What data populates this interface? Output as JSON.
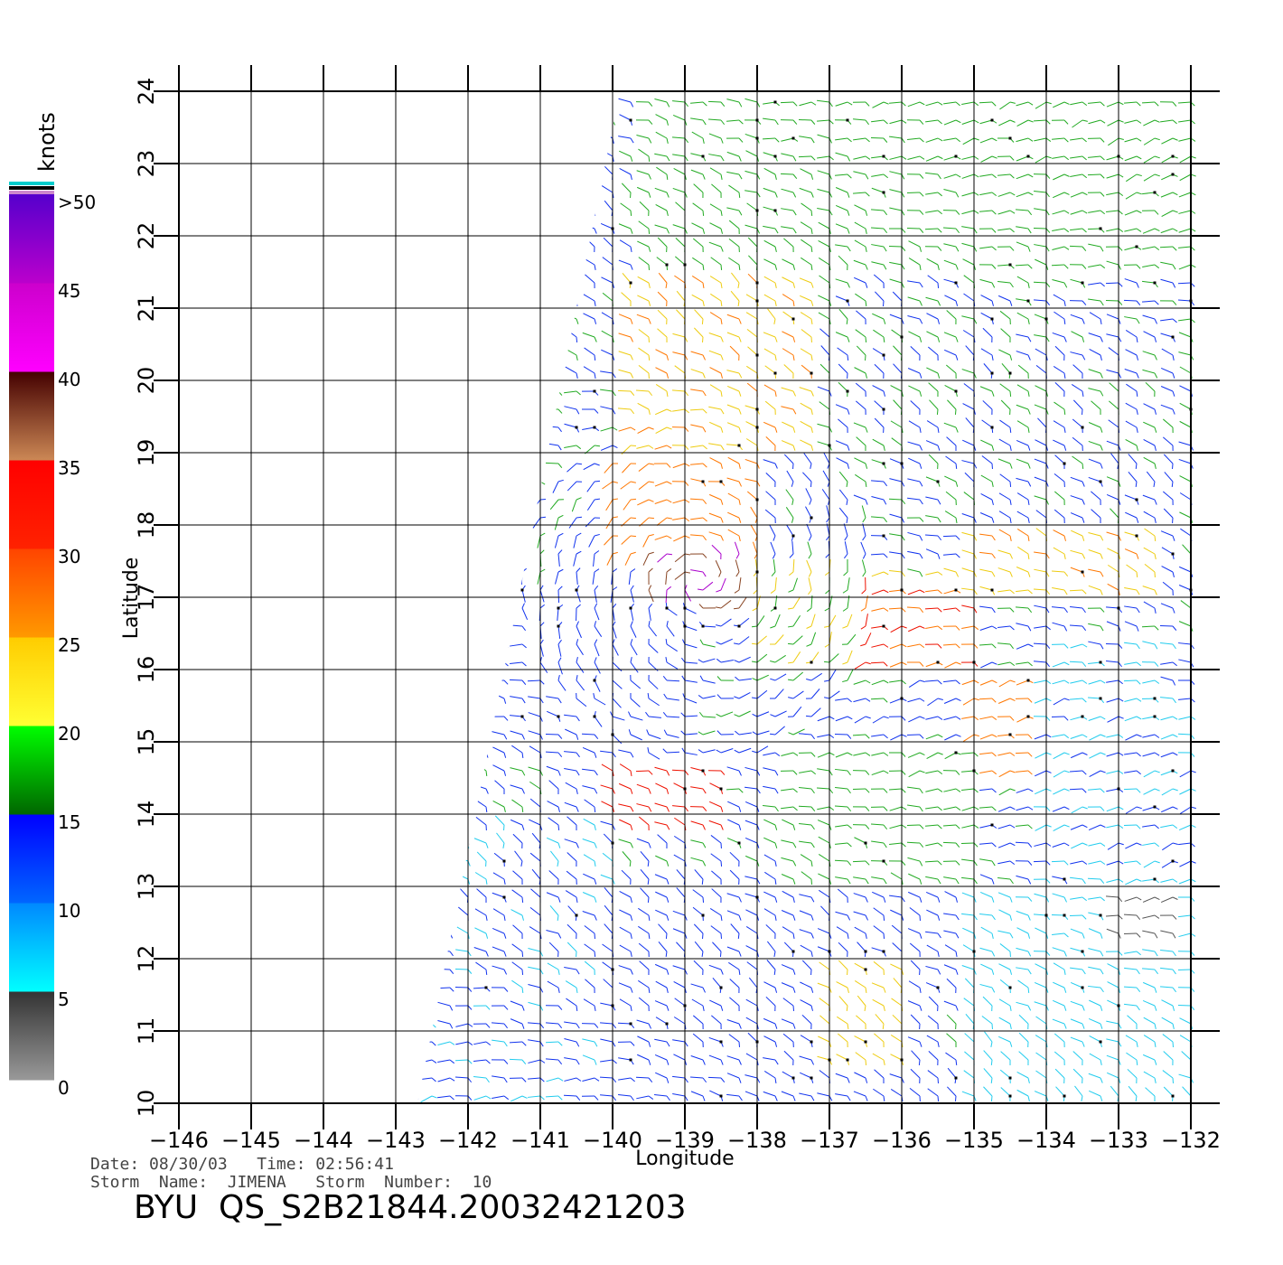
{
  "chart_data": {
    "type": "vector-field",
    "xlabel": "Longitude",
    "ylabel": "Latitude",
    "xlim": [
      -146,
      -132
    ],
    "ylim": [
      10,
      24
    ],
    "x_ticks": [
      "−146",
      "−145",
      "−144",
      "−143",
      "−142",
      "−141",
      "−140",
      "−139",
      "−138",
      "−137",
      "−136",
      "−135",
      "−134",
      "−133",
      "−132"
    ],
    "x_tick_values": [
      -146,
      -145,
      -144,
      -143,
      -142,
      -141,
      -140,
      -139,
      -138,
      -137,
      -136,
      -135,
      -134,
      -133,
      -132
    ],
    "y_ticks": [
      "10",
      "11",
      "12",
      "13",
      "14",
      "15",
      "16",
      "17",
      "18",
      "19",
      "20",
      "21",
      "22",
      "23",
      "24"
    ],
    "y_tick_values": [
      10,
      11,
      12,
      13,
      14,
      15,
      16,
      17,
      18,
      19,
      20,
      21,
      22,
      23,
      24
    ],
    "grid": true,
    "swath": {
      "description_free": true,
      "corners_lonlat": [
        [
          -139.9,
          24
        ],
        [
          -131.9,
          24
        ],
        [
          -131.9,
          10
        ],
        [
          -142.7,
          10
        ]
      ]
    },
    "colorbar": {
      "unit": "knots",
      "labels": [
        ">50",
        "45",
        "40",
        "35",
        "30",
        "25",
        "20",
        "15",
        "10",
        "5",
        "0"
      ],
      "label_values": [
        50,
        45,
        40,
        35,
        30,
        25,
        20,
        15,
        10,
        5,
        0
      ],
      "bands": [
        {
          "from": 0,
          "to": 5,
          "top": "#333333",
          "bottom": "#999999"
        },
        {
          "from": 5,
          "to": 10,
          "top": "#0088ff",
          "bottom": "#00ffff"
        },
        {
          "from": 10,
          "to": 15,
          "top": "#0000ff",
          "bottom": "#0066ff"
        },
        {
          "from": 15,
          "to": 20,
          "top": "#00ff00",
          "bottom": "#006600"
        },
        {
          "from": 20,
          "to": 25,
          "top": "#ffcc00",
          "bottom": "#ffff33"
        },
        {
          "from": 25,
          "to": 30,
          "top": "#ff4400",
          "bottom": "#ff9900"
        },
        {
          "from": 30,
          "to": 35,
          "top": "#ff0000",
          "bottom": "#ff2200"
        },
        {
          "from": 35,
          "to": 40,
          "top": "#440000",
          "bottom": "#cc8855"
        },
        {
          "from": 40,
          "to": 45,
          "top": "#cc00cc",
          "bottom": "#ff00ff"
        },
        {
          "from": 45,
          "to": 50,
          "top": "#5500cc",
          "bottom": "#bb00cc"
        }
      ],
      "top_stripes": [
        "#00cccc",
        "#000000",
        "#cc88cc"
      ]
    },
    "wind_regions": [
      {
        "lon": [
          -139.5,
          -132
        ],
        "lat": [
          21.5,
          24
        ],
        "speed": 18
      },
      {
        "lon": [
          -139.8,
          -137
        ],
        "lat": [
          19,
          21.5
        ],
        "speed": 24
      },
      {
        "lon": [
          -137,
          -132
        ],
        "lat": [
          19,
          21.5
        ],
        "speed": 15
      },
      {
        "lon": [
          -140,
          -138
        ],
        "lat": [
          17.5,
          19
        ],
        "speed": 28
      },
      {
        "lon": [
          -139.7,
          -138.2
        ],
        "lat": [
          16.7,
          17.8
        ],
        "speed": 40
      },
      {
        "lon": [
          -138,
          -135
        ],
        "lat": [
          16,
          17.5
        ],
        "speed": 20
      },
      {
        "lon": [
          -136.5,
          -135
        ],
        "lat": [
          16,
          17.2
        ],
        "speed": 30
      },
      {
        "lon": [
          -135,
          -132.5
        ],
        "lat": [
          17,
          18
        ],
        "speed": 24
      },
      {
        "lon": [
          -135,
          -133
        ],
        "lat": [
          14.5,
          16
        ],
        "speed": 28
      },
      {
        "lon": [
          -141.5,
          -139
        ],
        "lat": [
          15,
          17
        ],
        "speed": 13
      },
      {
        "lon": [
          -140,
          -138.5
        ],
        "lat": [
          13.8,
          14.6
        ],
        "speed": 32
      },
      {
        "lon": [
          -142.5,
          -140
        ],
        "lat": [
          10,
          14
        ],
        "speed": 11
      },
      {
        "lon": [
          -140,
          -135.5
        ],
        "lat": [
          10,
          13
        ],
        "speed": 12
      },
      {
        "lon": [
          -135,
          -132
        ],
        "lat": [
          10,
          13
        ],
        "speed": 7
      },
      {
        "lon": [
          -133,
          -132.2
        ],
        "lat": [
          12.2,
          13
        ],
        "speed": 3
      },
      {
        "lon": [
          -137,
          -136
        ],
        "lat": [
          10.5,
          12
        ],
        "speed": 22
      },
      {
        "lon": [
          -137.5,
          -135
        ],
        "lat": [
          13,
          15
        ],
        "speed": 17
      },
      {
        "lon": [
          -134,
          -132
        ],
        "lat": [
          13,
          16.5
        ],
        "speed": 10
      }
    ]
  },
  "info": {
    "line1": "Date: 08/30/03   Time: 02:56:41",
    "line2": "Storm  Name:  JIMENA   Storm  Number:  10",
    "title": "BYU  QS_S2B21844.20032421203"
  }
}
